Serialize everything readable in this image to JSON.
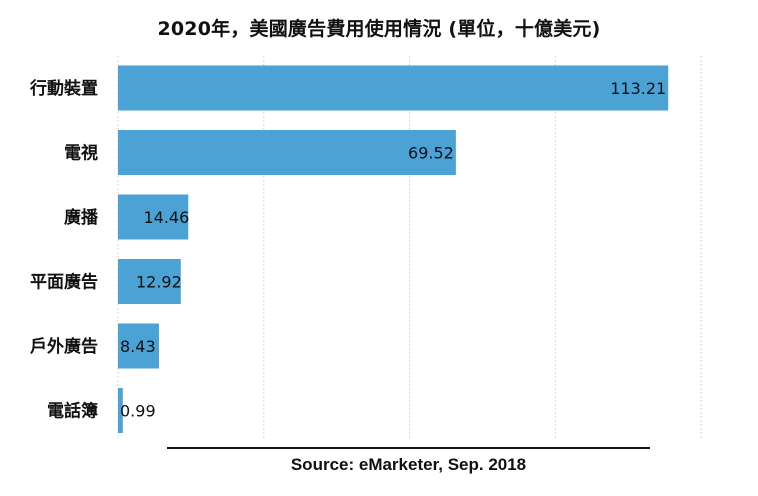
{
  "chart_data": {
    "type": "bar",
    "orientation": "horizontal",
    "title": "2020年，美國廣告費用使用情況 (單位，十億美元)",
    "categories": [
      "行動裝置",
      "電視",
      "廣播",
      "平面廣告",
      "戶外廣告",
      "電話簿"
    ],
    "values": [
      113.21,
      69.52,
      14.46,
      12.92,
      8.43,
      0.99
    ],
    "value_labels": [
      "113.21",
      "69.52",
      "14.46",
      "12.92",
      "8.43",
      "0.99"
    ],
    "xlim": [
      0,
      120
    ],
    "grid": true,
    "colors": {
      "bar": "#4aa2d5",
      "grid": "#c8c8c8"
    }
  },
  "source": "Source: eMarketer, Sep. 2018"
}
